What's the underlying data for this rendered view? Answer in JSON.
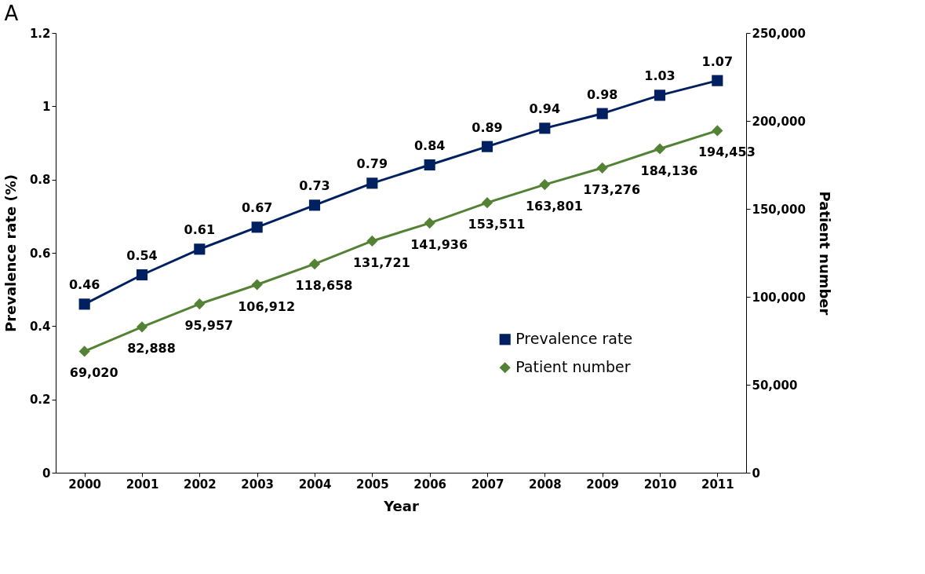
{
  "chart_data": {
    "type": "line",
    "title": "A",
    "xlabel": "Year",
    "ylabel": "Prevalence rate (%)",
    "y2label": "Patient number",
    "categories": [
      "2000",
      "2001",
      "2002",
      "2003",
      "2004",
      "2005",
      "2006",
      "2007",
      "2008",
      "2009",
      "2010",
      "2011"
    ],
    "series": [
      {
        "name": "Prevalence rate",
        "color": "#002060",
        "marker": "square",
        "values": [
          0.46,
          0.54,
          0.61,
          0.67,
          0.73,
          0.79,
          0.84,
          0.89,
          0.94,
          0.98,
          1.03,
          1.07
        ]
      },
      {
        "name": "Patient number",
        "color": "#548235",
        "marker": "diamond",
        "axis": "y2",
        "values": [
          69020,
          82888,
          95957,
          106912,
          118658,
          131721,
          141936,
          153511,
          163801,
          173276,
          184136,
          194453
        ],
        "value_labels": [
          "69,020",
          "82,888",
          "95,957",
          "106,912",
          "118,658",
          "131,721",
          "141,936",
          "153,511",
          "163,801",
          "173,276",
          "184,136",
          "194,453"
        ]
      }
    ],
    "ylim": [
      0,
      1.2
    ],
    "yticks": [
      0,
      0.2,
      0.4,
      0.6,
      0.8,
      1,
      1.2
    ],
    "y2lim": [
      0,
      250000
    ],
    "y2ticks": [
      0,
      {
        "value": 50000,
        "label": "50,000"
      },
      {
        "value": 100000,
        "label": "100,000"
      },
      {
        "value": 150000,
        "label": "150,000"
      },
      {
        "value": 200000,
        "label": "200,000"
      },
      {
        "value": 250000,
        "label": "250,000"
      }
    ],
    "data_labels": true,
    "grid": false,
    "legend": "bottom right"
  }
}
